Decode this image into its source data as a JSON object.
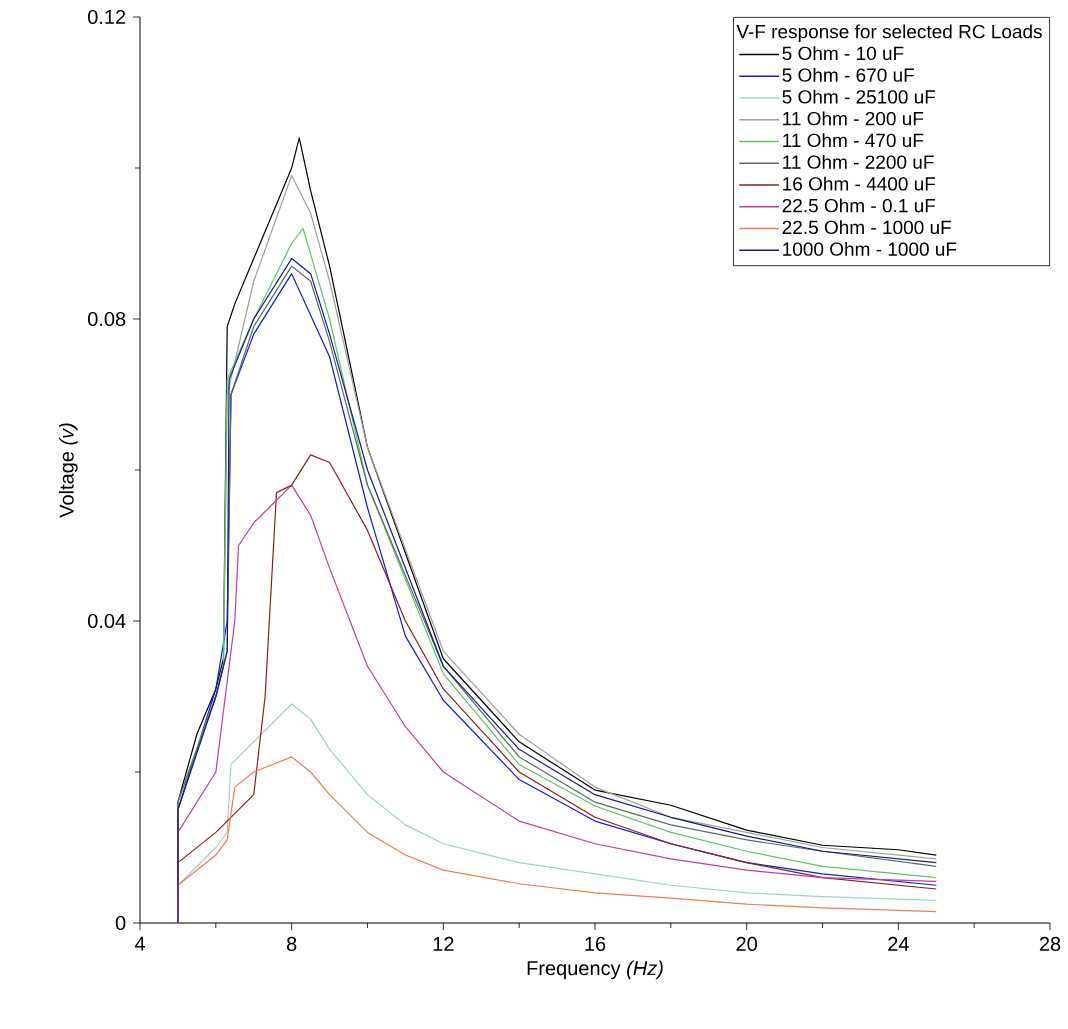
{
  "chart_data": {
    "type": "line",
    "xlabel": "Frequency *(Hz)*",
    "ylabel": "Voltage *(v)*",
    "legend_title": "V-F response for selected RC Loads",
    "legend": "top right",
    "xlim": [
      4,
      28
    ],
    "ylim": [
      0,
      0.12
    ],
    "xticks": [
      4,
      8,
      12,
      16,
      20,
      24,
      28
    ],
    "yticks": [
      0,
      0.04,
      0.08,
      0.12
    ],
    "series": [
      {
        "name": "5 Ohm - 10 uF",
        "color": "#000000",
        "x": [
          5,
          5,
          5.5,
          6,
          6.2,
          6.3,
          6.5,
          7,
          7.5,
          8,
          8.2,
          8.5,
          9,
          10,
          12,
          14,
          16,
          18,
          20,
          22,
          24,
          25
        ],
        "values": [
          0,
          0.016,
          0.025,
          0.031,
          0.035,
          0.079,
          0.082,
          0.088,
          0.094,
          0.1,
          0.104,
          0.097,
          0.087,
          0.063,
          0.035,
          0.024,
          0.0176,
          0.0156,
          0.0123,
          0.0103,
          0.0097,
          0.009
        ]
      },
      {
        "name": "5 Ohm - 670 uF",
        "color": "#0a1ee6",
        "x": [
          5,
          5,
          6,
          6.3,
          6.4,
          7,
          7.5,
          8,
          9,
          10,
          11,
          12,
          14,
          16,
          18,
          20,
          22,
          25
        ],
        "values": [
          0,
          0.015,
          0.031,
          0.04,
          0.07,
          0.078,
          0.082,
          0.086,
          0.075,
          0.055,
          0.038,
          0.0295,
          0.019,
          0.0135,
          0.0105,
          0.008,
          0.0065,
          0.005
        ]
      },
      {
        "name": "5 Ohm - 25100 uF",
        "color": "#9fd0d0",
        "x": [
          5,
          5,
          6,
          6.3,
          6.4,
          7,
          8,
          8.5,
          9,
          10,
          11,
          12,
          14,
          16,
          18,
          20,
          22,
          25
        ],
        "values": [
          0,
          0.005,
          0.01,
          0.012,
          0.021,
          0.024,
          0.029,
          0.027,
          0.023,
          0.017,
          0.013,
          0.0105,
          0.008,
          0.0065,
          0.005,
          0.004,
          0.0035,
          0.003
        ]
      },
      {
        "name": "11 Ohm - 200 uF",
        "color": "#a0a0a0",
        "x": [
          5,
          5,
          6,
          6.2,
          6.3,
          7,
          8,
          8.5,
          9,
          10,
          12,
          14,
          16,
          18,
          20,
          22,
          25
        ],
        "values": [
          0,
          0.016,
          0.03,
          0.034,
          0.07,
          0.085,
          0.099,
          0.094,
          0.085,
          0.063,
          0.036,
          0.025,
          0.018,
          0.014,
          0.012,
          0.01,
          0.0085
        ]
      },
      {
        "name": "11 Ohm - 470 uF",
        "color": "#5ec85e",
        "x": [
          5.2,
          6,
          6.2,
          6.3,
          7,
          8,
          8.3,
          9,
          10,
          12,
          14,
          16,
          18,
          20,
          22,
          25
        ],
        "values": [
          0.019,
          0.03,
          0.034,
          0.072,
          0.08,
          0.09,
          0.092,
          0.08,
          0.058,
          0.033,
          0.021,
          0.0155,
          0.012,
          0.0095,
          0.0075,
          0.006
        ]
      },
      {
        "name": "11 Ohm - 2200 uF",
        "color": "#5a6a6a",
        "x": [
          5,
          5,
          6,
          6.3,
          6.4,
          7,
          8,
          8.5,
          9,
          10,
          12,
          14,
          16,
          18,
          20,
          22,
          25
        ],
        "values": [
          0,
          0.016,
          0.03,
          0.036,
          0.07,
          0.079,
          0.087,
          0.085,
          0.077,
          0.058,
          0.034,
          0.022,
          0.016,
          0.013,
          0.011,
          0.0095,
          0.0075
        ]
      },
      {
        "name": "16 Ohm - 4400 uF",
        "color": "#8b2020",
        "x": [
          5,
          5,
          6,
          7,
          7.3,
          7.6,
          8,
          8.5,
          9,
          10,
          11,
          12,
          14,
          16,
          18,
          20,
          22,
          25
        ],
        "values": [
          0,
          0.008,
          0.012,
          0.017,
          0.03,
          0.057,
          0.058,
          0.062,
          0.061,
          0.052,
          0.04,
          0.031,
          0.02,
          0.014,
          0.0105,
          0.008,
          0.006,
          0.0045
        ]
      },
      {
        "name": "22.5 Ohm - 0.1 uF",
        "color": "#c83c9a",
        "x": [
          5,
          5,
          6,
          6.5,
          6.6,
          7,
          8,
          8.5,
          9,
          10,
          11,
          12,
          14,
          16,
          18,
          20,
          22,
          25
        ],
        "values": [
          0,
          0.012,
          0.02,
          0.04,
          0.05,
          0.053,
          0.058,
          0.054,
          0.047,
          0.034,
          0.026,
          0.02,
          0.0135,
          0.0105,
          0.0085,
          0.007,
          0.006,
          0.0055
        ]
      },
      {
        "name": "22.5 Ohm - 1000 uF",
        "color": "#f57a50",
        "x": [
          5,
          5,
          6,
          6.3,
          6.5,
          7,
          8,
          8.5,
          9,
          10,
          11,
          12,
          14,
          16,
          18,
          20,
          22,
          25
        ],
        "values": [
          0,
          0.005,
          0.009,
          0.011,
          0.018,
          0.02,
          0.022,
          0.02,
          0.017,
          0.012,
          0.009,
          0.007,
          0.0052,
          0.004,
          0.0033,
          0.0025,
          0.002,
          0.0015
        ]
      },
      {
        "name": "1000 Ohm - 1000 uF",
        "color": "#1a1a8a",
        "x": [
          5,
          5,
          6,
          6.3,
          6.35,
          7,
          8,
          8.5,
          9,
          10,
          12,
          14,
          16,
          18,
          20,
          22,
          25
        ],
        "values": [
          0,
          0.015,
          0.03,
          0.036,
          0.072,
          0.08,
          0.088,
          0.086,
          0.078,
          0.06,
          0.034,
          0.023,
          0.017,
          0.014,
          0.0115,
          0.0095,
          0.008
        ]
      }
    ]
  }
}
